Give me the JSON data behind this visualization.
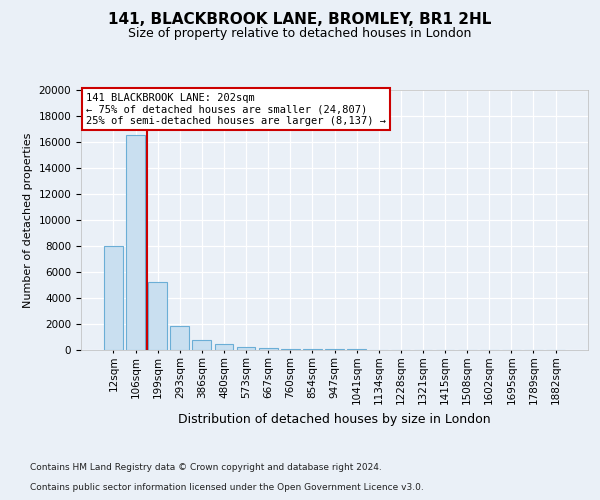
{
  "title": "141, BLACKBROOK LANE, BROMLEY, BR1 2HL",
  "subtitle": "Size of property relative to detached houses in London",
  "xlabel": "Distribution of detached houses by size in London",
  "ylabel": "Number of detached properties",
  "categories": [
    "12sqm",
    "106sqm",
    "199sqm",
    "293sqm",
    "386sqm",
    "480sqm",
    "573sqm",
    "667sqm",
    "760sqm",
    "854sqm",
    "947sqm",
    "1041sqm",
    "1134sqm",
    "1228sqm",
    "1321sqm",
    "1415sqm",
    "1508sqm",
    "1602sqm",
    "1695sqm",
    "1789sqm",
    "1882sqm"
  ],
  "values": [
    8000,
    16500,
    5200,
    1850,
    800,
    450,
    230,
    145,
    105,
    75,
    55,
    42,
    32,
    22,
    17,
    12,
    9,
    7,
    5,
    4,
    3
  ],
  "bar_color": "#c9dff0",
  "bar_edge_color": "#6baed6",
  "property_line_color": "#cc0000",
  "property_line_x": 1.5,
  "annotation_text": "141 BLACKBROOK LANE: 202sqm\n← 75% of detached houses are smaller (24,807)\n25% of semi-detached houses are larger (8,137) →",
  "annotation_box_color": "#cc0000",
  "annotation_bg_color": "#ffffff",
  "ylim": [
    0,
    20000
  ],
  "yticks": [
    0,
    2000,
    4000,
    6000,
    8000,
    10000,
    12000,
    14000,
    16000,
    18000,
    20000
  ],
  "bg_color": "#eaf0f7",
  "plot_bg_color": "#eaf0f7",
  "footer_line1": "Contains HM Land Registry data © Crown copyright and database right 2024.",
  "footer_line2": "Contains public sector information licensed under the Open Government Licence v3.0.",
  "title_fontsize": 11,
  "subtitle_fontsize": 9,
  "xlabel_fontsize": 9,
  "ylabel_fontsize": 8,
  "tick_fontsize": 7.5,
  "footer_fontsize": 6.5
}
